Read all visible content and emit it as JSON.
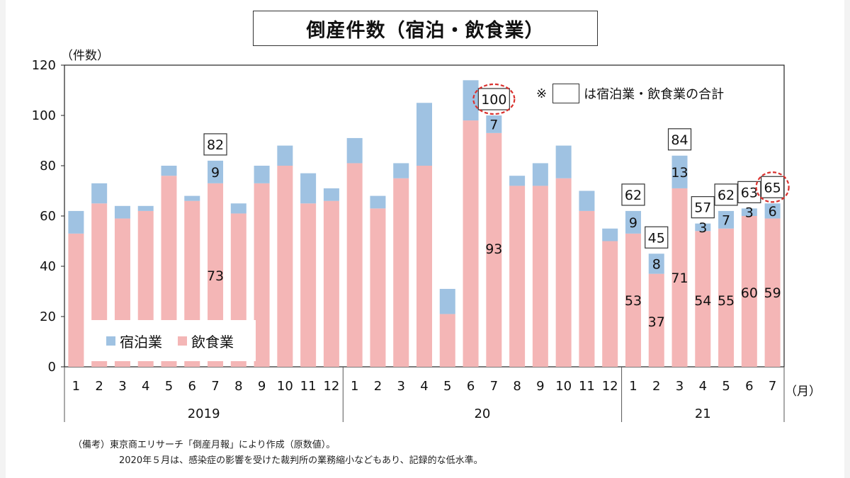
{
  "chart_data": {
    "type": "bar",
    "stacked": true,
    "title": "倒産件数（宿泊・飲食業）",
    "ylabel": "（件数）",
    "xlabel_unit": "（月）",
    "ylim": [
      0,
      120
    ],
    "yticks": [
      0,
      20,
      40,
      60,
      80,
      100,
      120
    ],
    "categories": [
      "1",
      "2",
      "3",
      "4",
      "5",
      "6",
      "7",
      "8",
      "9",
      "10",
      "11",
      "12",
      "1",
      "2",
      "3",
      "4",
      "5",
      "6",
      "7",
      "8",
      "9",
      "10",
      "11",
      "12",
      "1",
      "2",
      "3",
      "4",
      "5",
      "6",
      "7"
    ],
    "year_groups": [
      {
        "label": "2019",
        "count": 12
      },
      {
        "label": "20",
        "count": 12
      },
      {
        "label": "21",
        "count": 7
      }
    ],
    "series": [
      {
        "name": "飲食業",
        "color": "#f4b6b6",
        "values": [
          53,
          65,
          59,
          62,
          76,
          66,
          73,
          61,
          73,
          80,
          65,
          66,
          81,
          63,
          75,
          80,
          21,
          98,
          93,
          72,
          72,
          75,
          62,
          50,
          53,
          37,
          71,
          54,
          55,
          60,
          59
        ]
      },
      {
        "name": "宿泊業",
        "color": "#9fc2e2",
        "values": [
          9,
          8,
          5,
          2,
          4,
          2,
          9,
          4,
          7,
          8,
          12,
          5,
          10,
          5,
          6,
          25,
          10,
          16,
          7,
          4,
          9,
          13,
          8,
          5,
          9,
          8,
          13,
          3,
          7,
          3,
          6
        ]
      }
    ],
    "legend": [
      "宿泊業",
      "飲食業"
    ],
    "labels": [
      {
        "index": 6,
        "total": "82",
        "lodging": "9",
        "food": "73"
      },
      {
        "index": 18,
        "total": "100",
        "lodging": "7",
        "food": "93",
        "circled": true
      },
      {
        "index": 24,
        "total": "62",
        "lodging": "9",
        "food": "53"
      },
      {
        "index": 25,
        "total": "45",
        "lodging": "8",
        "food": "37"
      },
      {
        "index": 26,
        "total": "84",
        "lodging": "13",
        "food": "71"
      },
      {
        "index": 27,
        "total": "57",
        "lodging": "3",
        "food": "54"
      },
      {
        "index": 28,
        "total": "62",
        "lodging": "7",
        "food": "55"
      },
      {
        "index": 29,
        "total": "63",
        "lodging": "3",
        "food": "60"
      },
      {
        "index": 30,
        "total": "65",
        "lodging": "6",
        "food": "59",
        "circled": true
      }
    ],
    "note": {
      "symbol": "※",
      "text": "は宿泊業・飲食業の合計"
    }
  },
  "footnote": {
    "line1": "（備考）東京商エリサーチ「倒産月報」により作成（原数値）。",
    "line2": "2020年５月は、感染症の影響を受けた裁判所の業務縮小などもあり、記録的な低水準。"
  },
  "colors": {
    "food": "#f4b6b6",
    "lodging": "#9fc2e2",
    "circle": "#d9322f"
  }
}
